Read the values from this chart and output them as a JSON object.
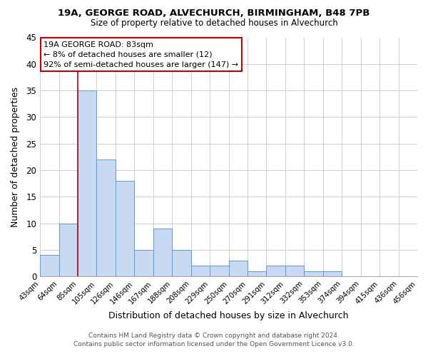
{
  "title1": "19A, GEORGE ROAD, ALVECHURCH, BIRMINGHAM, B48 7PB",
  "title2": "Size of property relative to detached houses in Alvechurch",
  "xlabel": "Distribution of detached houses by size in Alvechurch",
  "ylabel": "Number of detached properties",
  "bin_labels": [
    "43sqm",
    "64sqm",
    "85sqm",
    "105sqm",
    "126sqm",
    "146sqm",
    "167sqm",
    "188sqm",
    "208sqm",
    "229sqm",
    "250sqm",
    "270sqm",
    "291sqm",
    "312sqm",
    "332sqm",
    "353sqm",
    "374sqm",
    "394sqm",
    "415sqm",
    "436sqm",
    "456sqm"
  ],
  "bar_heights": [
    4,
    10,
    35,
    22,
    18,
    5,
    9,
    5,
    2,
    2,
    3,
    1,
    2,
    2,
    1,
    1,
    0,
    0,
    0,
    0
  ],
  "bar_color": "#c6d9f1",
  "bar_edge_color": "#5b9bd5",
  "vline_color": "#c00000",
  "vline_x_index": 2,
  "ylim": [
    0,
    45
  ],
  "yticks": [
    0,
    5,
    10,
    15,
    20,
    25,
    30,
    35,
    40,
    45
  ],
  "annotation_title": "19A GEORGE ROAD: 83sqm",
  "annotation_line1": "← 8% of detached houses are smaller (12)",
  "annotation_line2": "92% of semi-detached houses are larger (147) →",
  "annotation_box_color": "#ffffff",
  "annotation_box_edge": "#c00000",
  "footer1": "Contains HM Land Registry data © Crown copyright and database right 2024.",
  "footer2": "Contains public sector information licensed under the Open Government Licence v3.0."
}
